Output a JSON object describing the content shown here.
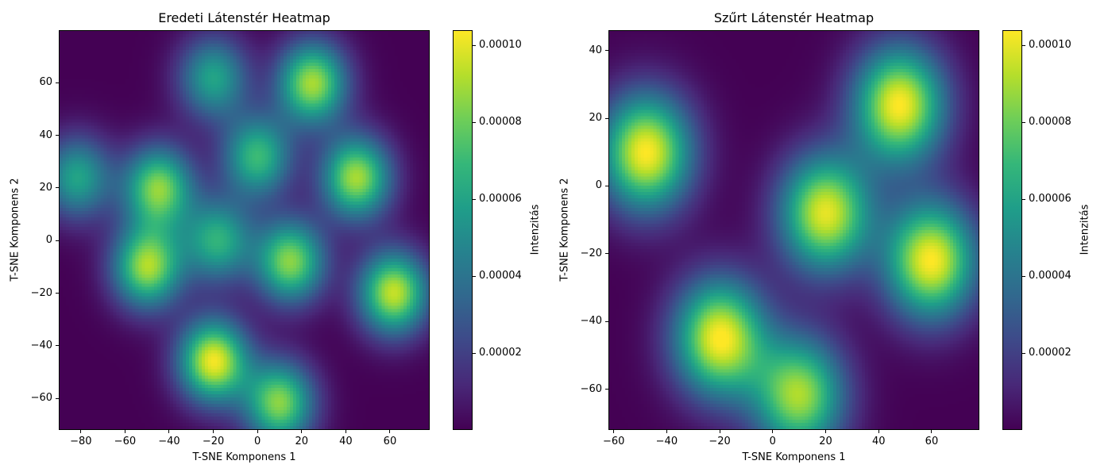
{
  "colors": {
    "colormap": "viridis",
    "low": "#440154",
    "high": "#fde725"
  },
  "chart_data": [
    {
      "type": "heatmap",
      "title": "Eredeti Látenstér Heatmap",
      "xlabel": "T-SNE Komponens 1",
      "ylabel": "T-SNE Komponens 2",
      "xlim": [
        -90,
        78
      ],
      "ylim": [
        -72,
        80
      ],
      "xticks": [
        -80,
        -60,
        -40,
        -20,
        0,
        20,
        40,
        60
      ],
      "yticks": [
        -60,
        -40,
        -20,
        0,
        20,
        40,
        60
      ],
      "xtick_labels": [
        "−80",
        "−60",
        "−40",
        "−20",
        "0",
        "20",
        "40",
        "60"
      ],
      "ytick_labels": [
        "−60",
        "−40",
        "−20",
        "0",
        "20",
        "40",
        "60"
      ],
      "grid": false,
      "colorbar": {
        "label": "Intenzitás",
        "range": [
          0.0,
          0.000104
        ],
        "ticks": [
          2e-05,
          4e-05,
          6e-05,
          8e-05,
          0.0001
        ],
        "tick_labels": [
          "0.00002",
          "0.00004",
          "0.00006",
          "0.00008",
          "0.00010"
        ]
      },
      "hotspots": [
        {
          "x": -20,
          "y": -46,
          "intensity": 0.000102
        },
        {
          "x": 10,
          "y": -62,
          "intensity": 8.5e-05
        },
        {
          "x": -50,
          "y": -10,
          "intensity": 9e-05
        },
        {
          "x": -45,
          "y": 20,
          "intensity": 8.5e-05
        },
        {
          "x": -82,
          "y": 24,
          "intensity": 6e-05
        },
        {
          "x": -18,
          "y": 0,
          "intensity": 6.5e-05
        },
        {
          "x": 15,
          "y": -8,
          "intensity": 8.5e-05
        },
        {
          "x": 45,
          "y": 24,
          "intensity": 9e-05
        },
        {
          "x": 62,
          "y": -20,
          "intensity": 9.5e-05
        },
        {
          "x": 25,
          "y": 60,
          "intensity": 9e-05
        },
        {
          "x": -20,
          "y": 62,
          "intensity": 6e-05
        },
        {
          "x": 0,
          "y": 32,
          "intensity": 7e-05
        }
      ]
    },
    {
      "type": "heatmap",
      "title": "Szűrt Látenstér Heatmap",
      "xlabel": "T-SNE Komponens 1",
      "ylabel": "T-SNE Komponens 2",
      "xlim": [
        -62,
        78
      ],
      "ylim": [
        -72,
        46
      ],
      "xticks": [
        -60,
        -40,
        -20,
        0,
        20,
        40,
        60
      ],
      "yticks": [
        -60,
        -40,
        -20,
        0,
        20,
        40
      ],
      "xtick_labels": [
        "−60",
        "−40",
        "−20",
        "0",
        "20",
        "40",
        "60"
      ],
      "ytick_labels": [
        "−60",
        "−40",
        "−20",
        "0",
        "20",
        "40"
      ],
      "grid": false,
      "colorbar": {
        "label": "Intenzitás",
        "range": [
          0.0,
          0.000104
        ],
        "ticks": [
          2e-05,
          4e-05,
          6e-05,
          8e-05,
          0.0001
        ],
        "tick_labels": [
          "0.00002",
          "0.00004",
          "0.00006",
          "0.00008",
          "0.00010"
        ]
      },
      "hotspots": [
        {
          "x": -48,
          "y": 10,
          "intensity": 0.000104
        },
        {
          "x": -20,
          "y": -45,
          "intensity": 0.000104
        },
        {
          "x": 10,
          "y": -62,
          "intensity": 9e-05
        },
        {
          "x": 20,
          "y": -8,
          "intensity": 0.0001
        },
        {
          "x": 48,
          "y": 24,
          "intensity": 0.000104
        },
        {
          "x": 60,
          "y": -22,
          "intensity": 0.000104
        }
      ]
    }
  ]
}
